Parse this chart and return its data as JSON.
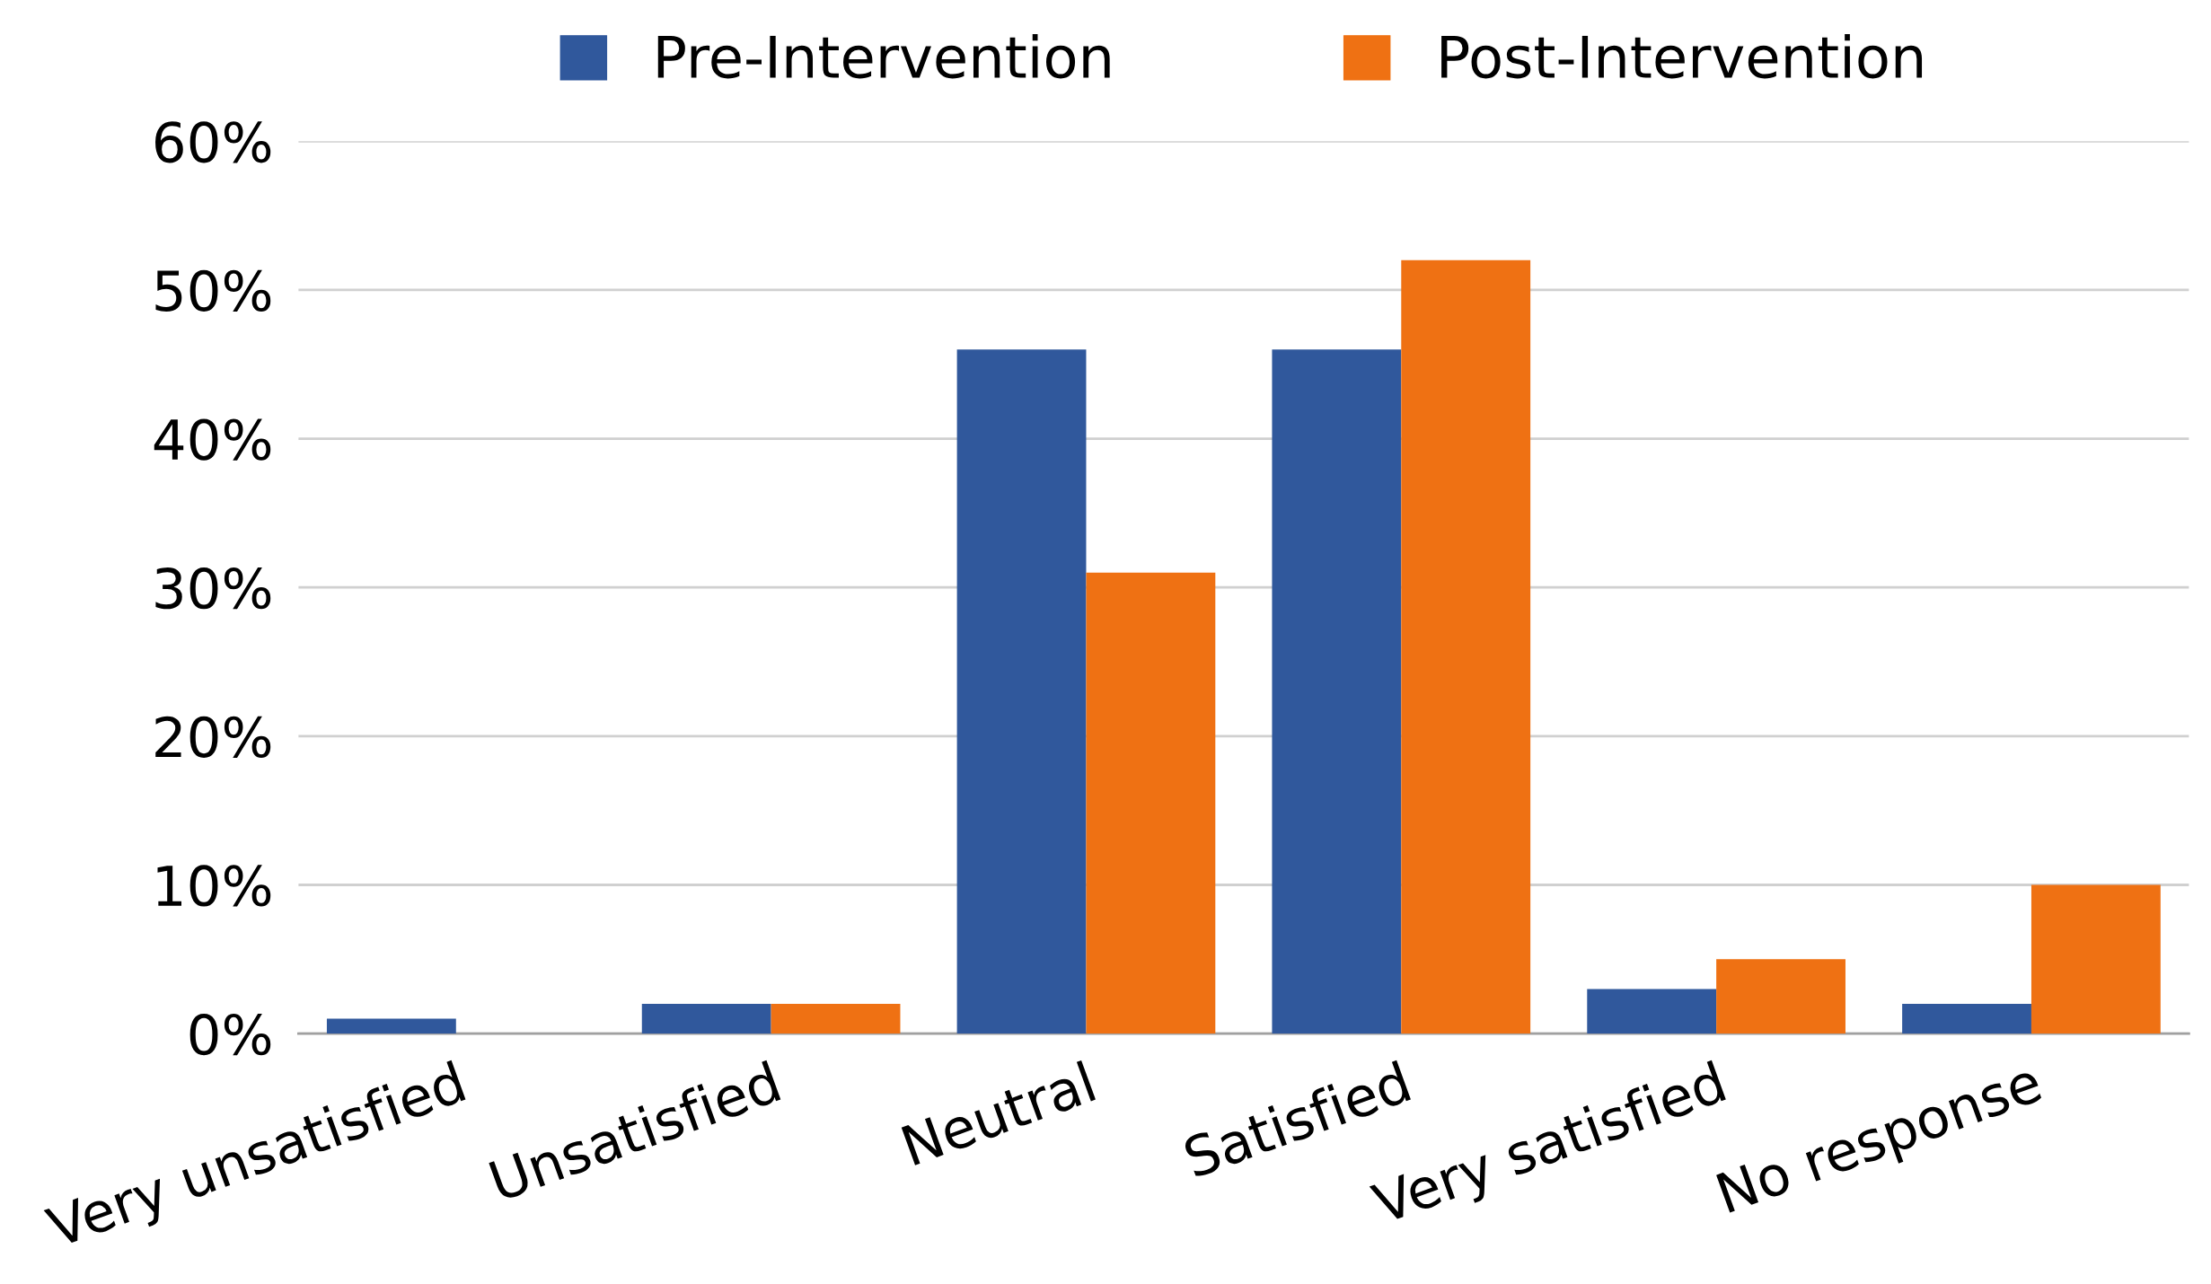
{
  "chart_data": {
    "type": "bar",
    "categories": [
      "Very unsatisfied",
      "Unsatisfied",
      "Neutral",
      "Satisfied",
      "Very satisfied",
      "No response"
    ],
    "series": [
      {
        "name": "Pre-Intervention",
        "color": "#30589c",
        "values": [
          1,
          2,
          46,
          46,
          3,
          2
        ]
      },
      {
        "name": "Post-Intervention",
        "color": "#ef7113",
        "values": [
          0,
          2,
          31,
          52,
          5,
          10
        ]
      }
    ],
    "ylim": [
      0,
      60
    ],
    "yticks": [
      {
        "value": 0,
        "label": "0%"
      },
      {
        "value": 10,
        "label": "10%"
      },
      {
        "value": 20,
        "label": "20%"
      },
      {
        "value": 30,
        "label": "30%"
      },
      {
        "value": 40,
        "label": "40%"
      },
      {
        "value": 50,
        "label": "50%"
      },
      {
        "value": 60,
        "label": "60%"
      }
    ],
    "grid": "y",
    "legend": "top"
  }
}
